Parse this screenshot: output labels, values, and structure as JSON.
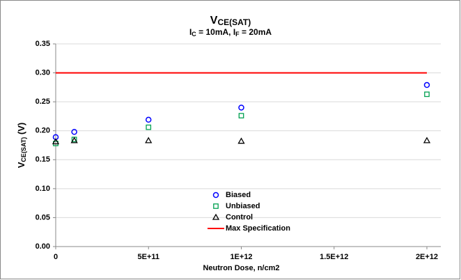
{
  "chart_data": {
    "type": "scatter",
    "title": [
      "V",
      "CE(SAT)"
    ],
    "subtitle": [
      "I",
      "C",
      " = 10mA, I",
      "F",
      " = 20mA"
    ],
    "ylabel": [
      "V",
      "CE(SAT)",
      " (V)"
    ],
    "xlabel": "Neutron Dose, n/cm2",
    "xlim": [
      0,
      2000000000000
    ],
    "ylim": [
      0,
      0.35
    ],
    "xticks": [
      0,
      {
        "value": 500000000000,
        "label": "5E+11"
      },
      {
        "value": 1000000000000,
        "label": "1E+12"
      },
      {
        "value": 1500000000000,
        "label": "1.5E+12"
      },
      {
        "value": 2000000000000,
        "label": "2E+12"
      }
    ],
    "yticks": [
      {
        "value": 0,
        "label": "0.00"
      },
      {
        "value": 0.05,
        "label": "0.05"
      },
      {
        "value": 0.1,
        "label": "0.10"
      },
      {
        "value": 0.15,
        "label": "0.15"
      },
      {
        "value": 0.2,
        "label": "0.20"
      },
      {
        "value": 0.25,
        "label": "0.25"
      },
      {
        "value": 0.3,
        "label": "0.30"
      },
      {
        "value": 0.35,
        "label": "0.35"
      }
    ],
    "grid": true,
    "series": [
      {
        "name": "Biased",
        "color": "#0000ff",
        "marker": "circle",
        "x": [
          0,
          100000000000,
          500000000000,
          1000000000000,
          2000000000000
        ],
        "values": [
          0.189,
          0.198,
          0.219,
          0.24,
          0.279
        ]
      },
      {
        "name": "Unbiased",
        "color": "#00a050",
        "marker": "square",
        "x": [
          0,
          100000000000,
          500000000000,
          1000000000000,
          2000000000000
        ],
        "values": [
          0.178,
          0.185,
          0.206,
          0.226,
          0.263
        ]
      },
      {
        "name": "Control",
        "color": "#000000",
        "marker": "triangle",
        "x": [
          0,
          100000000000,
          500000000000,
          1000000000000,
          2000000000000
        ],
        "values": [
          0.181,
          0.183,
          0.183,
          0.182,
          0.183
        ]
      },
      {
        "name": "Max Specification",
        "color": "#ff0000",
        "marker": "line",
        "x": [
          0,
          2000000000000
        ],
        "values": [
          0.3,
          0.3
        ]
      }
    ]
  }
}
